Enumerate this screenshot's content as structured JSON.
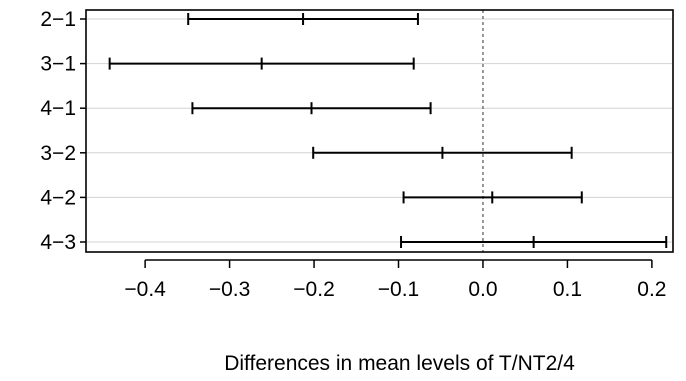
{
  "chart_data": {
    "type": "interval",
    "title": "",
    "xlabel": "Differences in mean levels of T/NT2/4",
    "ylabel": "",
    "xlim": [
      -0.47,
      0.225
    ],
    "xticks": [
      -0.4,
      -0.3,
      -0.2,
      -0.1,
      0.0,
      0.1,
      0.2
    ],
    "xtick_labels": [
      "−0.4",
      "−0.3",
      "−0.2",
      "−0.1",
      "0.0",
      "0.1",
      "0.2"
    ],
    "reference_line": 0.0,
    "grid": "horizontal",
    "categories": [
      "2−1",
      "3−1",
      "4−1",
      "3−2",
      "4−2",
      "4−3"
    ],
    "series": [
      {
        "lower": [
          -0.349,
          -0.442,
          -0.344,
          -0.201,
          -0.094,
          -0.097
        ],
        "estimate": [
          -0.213,
          -0.262,
          -0.203,
          -0.048,
          0.011,
          0.06
        ],
        "upper": [
          -0.077,
          -0.082,
          -0.062,
          0.105,
          0.117,
          0.217
        ]
      }
    ],
    "colors": {
      "line": "#000000",
      "grid": "#d3d3d3",
      "reference": "#555555"
    }
  }
}
